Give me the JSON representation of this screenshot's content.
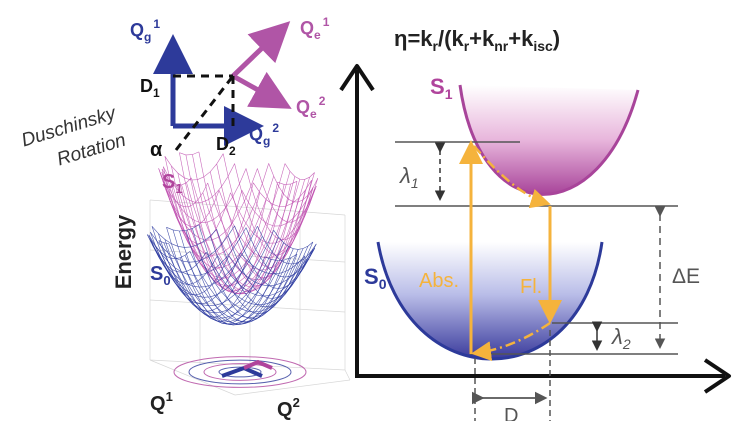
{
  "efficiency": {
    "eta": "η",
    "eq": "=k",
    "kr": "r",
    "mid1": "/(k",
    "kr2": "r",
    "plus1": "+k",
    "knr": "nr",
    "plus2": "+k",
    "kisc": "isc",
    "close": ")"
  },
  "duschinsky": {
    "caption_line1": "Duschinsky",
    "caption_line2": "Rotation",
    "qg1_base": "Q",
    "qg1_sub": "g",
    "qg1_sup": "1",
    "qe1_base": "Q",
    "qe1_sub": "e",
    "qe1_sup": "1",
    "qe2_base": "Q",
    "qe2_sub": "e",
    "qe2_sup": "2",
    "qg2_base": "Q",
    "qg2_sub": "g",
    "qg2_sup": "2",
    "d1_base": "D",
    "d1_sub": "1",
    "d2_base": "D",
    "d2_sub": "2",
    "alpha": "α"
  },
  "surface_plot": {
    "s1_base": "S",
    "s1_sub": "1",
    "s0_base": "S",
    "s0_sub": "0",
    "ylabel": "Energy",
    "q1_base": "Q",
    "q1_sup": "1",
    "q2_base": "Q",
    "q2_sup": "2"
  },
  "energy_diagram": {
    "s1_base": "S",
    "s1_sub": "1",
    "s0_base": "S",
    "s0_sub": "0",
    "lambda1_base": "λ",
    "lambda1_sub": "1",
    "lambda2_base": "λ",
    "lambda2_sub": "2",
    "delta_e": "ΔE",
    "abs_label": "Abs.",
    "fl_label": "Fl.",
    "d_label": "D"
  },
  "colors": {
    "pink": "#b0449c",
    "blue": "#2d3a9a",
    "orange": "#f5b33c",
    "dark": "#222222"
  }
}
